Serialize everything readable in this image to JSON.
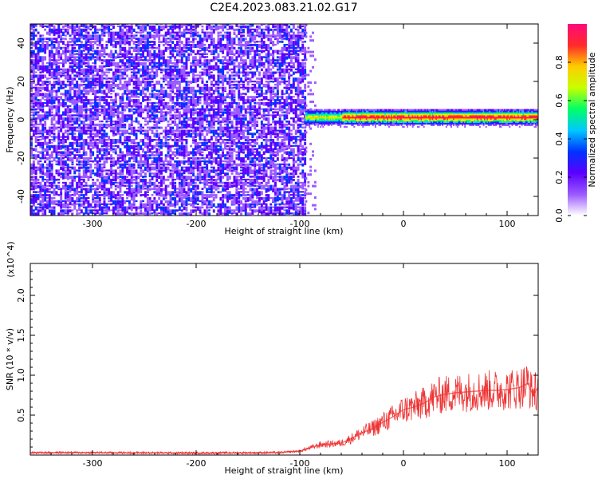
{
  "title": "C2E4.2023.083.21.02.G17",
  "chart_data": [
    {
      "type": "heatmap",
      "title": "C2E4.2023.083.21.02.G17",
      "xlabel": "Height of straight line (km)",
      "ylabel": "Frequency (Hz)",
      "xlim": [
        -360,
        130
      ],
      "ylim": [
        -50,
        50
      ],
      "xticks": [
        -300,
        -200,
        -100,
        0,
        100
      ],
      "yticks": [
        -40,
        -20,
        0,
        20,
        40
      ],
      "noise_region_x": [
        -360,
        -95
      ],
      "signal_region_x": [
        -95,
        130
      ],
      "signal_center_frequency_hz": 1,
      "signal_band_hz": [
        -4,
        5
      ],
      "colorbar": {
        "label": "Normalized spectral amplitude",
        "range": [
          0.0,
          1.0
        ],
        "ticks": [
          0.0,
          0.2,
          0.4,
          0.6,
          0.8
        ],
        "colors": [
          "#ffffff",
          "#9b59ff",
          "#5a00ff",
          "#0033ff",
          "#00c8ff",
          "#00ff66",
          "#c8ff00",
          "#ffcc00",
          "#ff2a2a",
          "#ff0a7a"
        ]
      }
    },
    {
      "type": "line",
      "xlabel": "Height of straight line (km)",
      "ylabel": "SNR (10 * v/v)",
      "y_multiplier": "(x10^4)",
      "xlim": [
        -360,
        130
      ],
      "ylim": [
        0,
        24000
      ],
      "xticks": [
        -300,
        -200,
        -100,
        0,
        100
      ],
      "yticks": [
        5000,
        10000,
        15000,
        20000
      ],
      "ytick_labels": [
        "0.5",
        "1.0",
        "1.5",
        "2.0"
      ],
      "series": [
        {
          "color": "#ee3333",
          "x": [
            -360,
            -300,
            -200,
            -120,
            -100,
            -80,
            -70,
            -60,
            -50,
            -40,
            -30,
            -20,
            -10,
            0,
            10,
            20,
            30,
            40,
            50,
            60,
            70,
            80,
            90,
            100,
            110,
            115,
            120,
            125,
            130
          ],
          "y": [
            300,
            300,
            250,
            300,
            500,
            1300,
            1400,
            1500,
            2100,
            2800,
            3300,
            4100,
            4800,
            5700,
            6000,
            6500,
            7300,
            7600,
            7800,
            7900,
            8000,
            8100,
            8100,
            8200,
            8400,
            8600,
            9000,
            7500,
            8500
          ]
        }
      ]
    }
  ]
}
